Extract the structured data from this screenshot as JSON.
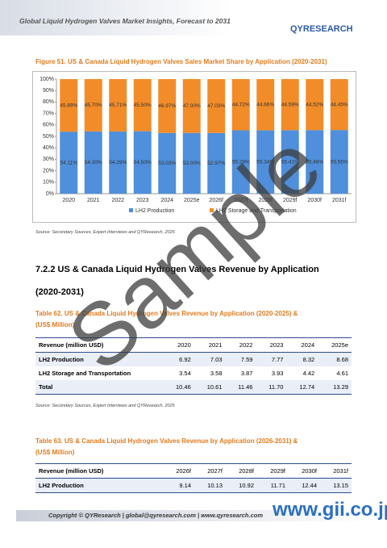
{
  "header": {
    "title": "Global Liquid Hydrogen Valves Market Insights, Forecast to 2031",
    "logo": "QYRESEARCH"
  },
  "figure": {
    "caption": "Figure 51.   US & Canada Liquid Hydrogen Valves Sales Market Share by Application (2020-2031)",
    "source": "Source: Secondary Sources, Expert Interviews and QYResearch, 2025"
  },
  "chart_data": {
    "type": "stacked_bar",
    "categories": [
      "2020",
      "2021",
      "2022",
      "2023",
      "2024",
      "2025e",
      "2026f",
      "2027f",
      "2028f",
      "2029f",
      "2030f",
      "2031f"
    ],
    "series": [
      {
        "name": "LH2 Production",
        "color": "#4f8fdb",
        "values": [
          54.11,
          54.3,
          54.29,
          54.5,
          53.03,
          53.0,
          52.97,
          55.28,
          55.34,
          55.41,
          55.48,
          55.55
        ],
        "value_labels": [
          "54.11%",
          "54.30%",
          "54.29%",
          "54.50%",
          "53.03%",
          "53.00%",
          "52.97%",
          "55.28%",
          "55.34%",
          "55.41%",
          "55.48%",
          "55.55%"
        ]
      },
      {
        "name": "LH2 Storage and Transportation",
        "color": "#f28c28",
        "values": [
          45.89,
          45.7,
          45.71,
          45.5,
          46.97,
          47.0,
          47.03,
          44.72,
          44.66,
          44.59,
          44.52,
          44.45
        ],
        "value_labels": [
          "45.89%",
          "45.70%",
          "45.71%",
          "45.50%",
          "46.97%",
          "47.00%",
          "47.03%",
          "44.72%",
          "44.66%",
          "44.59%",
          "44.52%",
          "44.45%"
        ]
      }
    ],
    "ylim": [
      0,
      100
    ],
    "yticks": [
      {
        "value": 0,
        "label": "0%"
      },
      {
        "value": 10,
        "label": "10%"
      },
      {
        "value": 20,
        "label": "20%"
      },
      {
        "value": 30,
        "label": "30%"
      },
      {
        "value": 40,
        "label": "40%"
      },
      {
        "value": 50,
        "label": "50%"
      },
      {
        "value": 60,
        "label": "60%"
      },
      {
        "value": 70,
        "label": "70%"
      },
      {
        "value": 80,
        "label": "80%"
      },
      {
        "value": 90,
        "label": "90%"
      },
      {
        "value": 100,
        "label": "100%"
      }
    ],
    "legend": "bottom"
  },
  "section": {
    "heading": "7.2.2  US & Canada Liquid Hydrogen Valves Revenue by Application",
    "heading2": "(2020-2031)"
  },
  "table62": {
    "caption": "Table 62.   US & Canada Liquid Hydrogen Valves Revenue by Application (2020-2025) &",
    "caption2": "(US$ Million)",
    "header": [
      "Revenue (million USD)",
      "2020",
      "2021",
      "2022",
      "2023",
      "2024",
      "2025e"
    ],
    "rows": [
      [
        "LH2 Production",
        "6.92",
        "7.03",
        "7.59",
        "7.77",
        "8.32",
        "8.68"
      ],
      [
        "LH2 Storage and Transportation",
        "3.54",
        "3.58",
        "3.87",
        "3.93",
        "4.42",
        "4.61"
      ],
      [
        "Total",
        "10.46",
        "10.61",
        "11.46",
        "11.70",
        "12.74",
        "13.29"
      ]
    ],
    "source": "Source: Secondary Sources, Expert Interviews and QYResearch, 2025"
  },
  "table63": {
    "caption": "Table 63.   US & Canada Liquid Hydrogen Valves Revenue by Application (2026-2031) &",
    "caption2": "(US$ Million)",
    "header": [
      "Revenue (million USD)",
      "2026f",
      "2027f",
      "2028f",
      "2029f",
      "2030f",
      "2031f"
    ],
    "rows": [
      [
        "LH2 Production",
        "9.14",
        "10.13",
        "10.92",
        "11.71",
        "12.44",
        "13.15"
      ]
    ]
  },
  "footer": {
    "text": "Copyright © QYResearch | global@qyresearch.com | www.qyresearch.com"
  },
  "watermark": {
    "text": "Sample",
    "site": "www.gii.co.jp"
  }
}
